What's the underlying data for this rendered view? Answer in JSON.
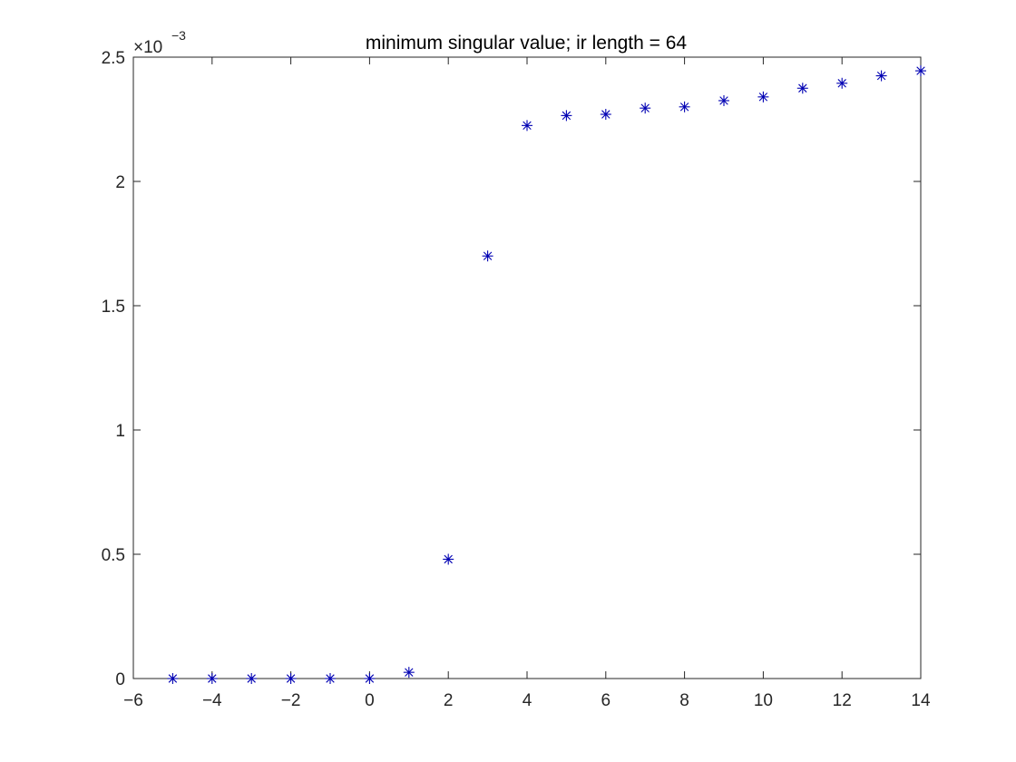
{
  "chart_data": {
    "type": "scatter",
    "title": "minimum singular value; ir length = 64",
    "xlabel": "",
    "ylabel": "",
    "xlim": [
      -6,
      14
    ],
    "ylim": [
      0,
      0.0025
    ],
    "y_exponent_multiplier": "×10",
    "y_exponent_power": "−3",
    "x_ticks": [
      -6,
      -4,
      -2,
      0,
      2,
      4,
      6,
      8,
      10,
      12,
      14
    ],
    "x_tick_labels": [
      "−6",
      "−4",
      "−2",
      "0",
      "2",
      "4",
      "6",
      "8",
      "10",
      "12",
      "14"
    ],
    "y_ticks": [
      0,
      0.0005,
      0.001,
      0.0015,
      0.002,
      0.0025
    ],
    "y_tick_labels": [
      "0",
      "0.5",
      "1",
      "1.5",
      "2",
      "2.5"
    ],
    "marker": "asterisk",
    "marker_color": "#0000b3",
    "grid": false,
    "series": [
      {
        "x": [
          -5,
          -4,
          -3,
          -2,
          -1,
          0,
          1,
          2,
          3,
          4,
          5,
          6,
          7,
          8,
          9,
          10,
          11,
          12,
          13,
          14
        ],
        "values": [
          0.0,
          0.0,
          0.0,
          0.0,
          0.0,
          0.0,
          2.5e-05,
          0.00048,
          0.0017,
          0.002225,
          0.002265,
          0.00227,
          0.002295,
          0.0023,
          0.002325,
          0.00234,
          0.002375,
          0.002395,
          0.002425,
          0.002445
        ]
      }
    ]
  }
}
